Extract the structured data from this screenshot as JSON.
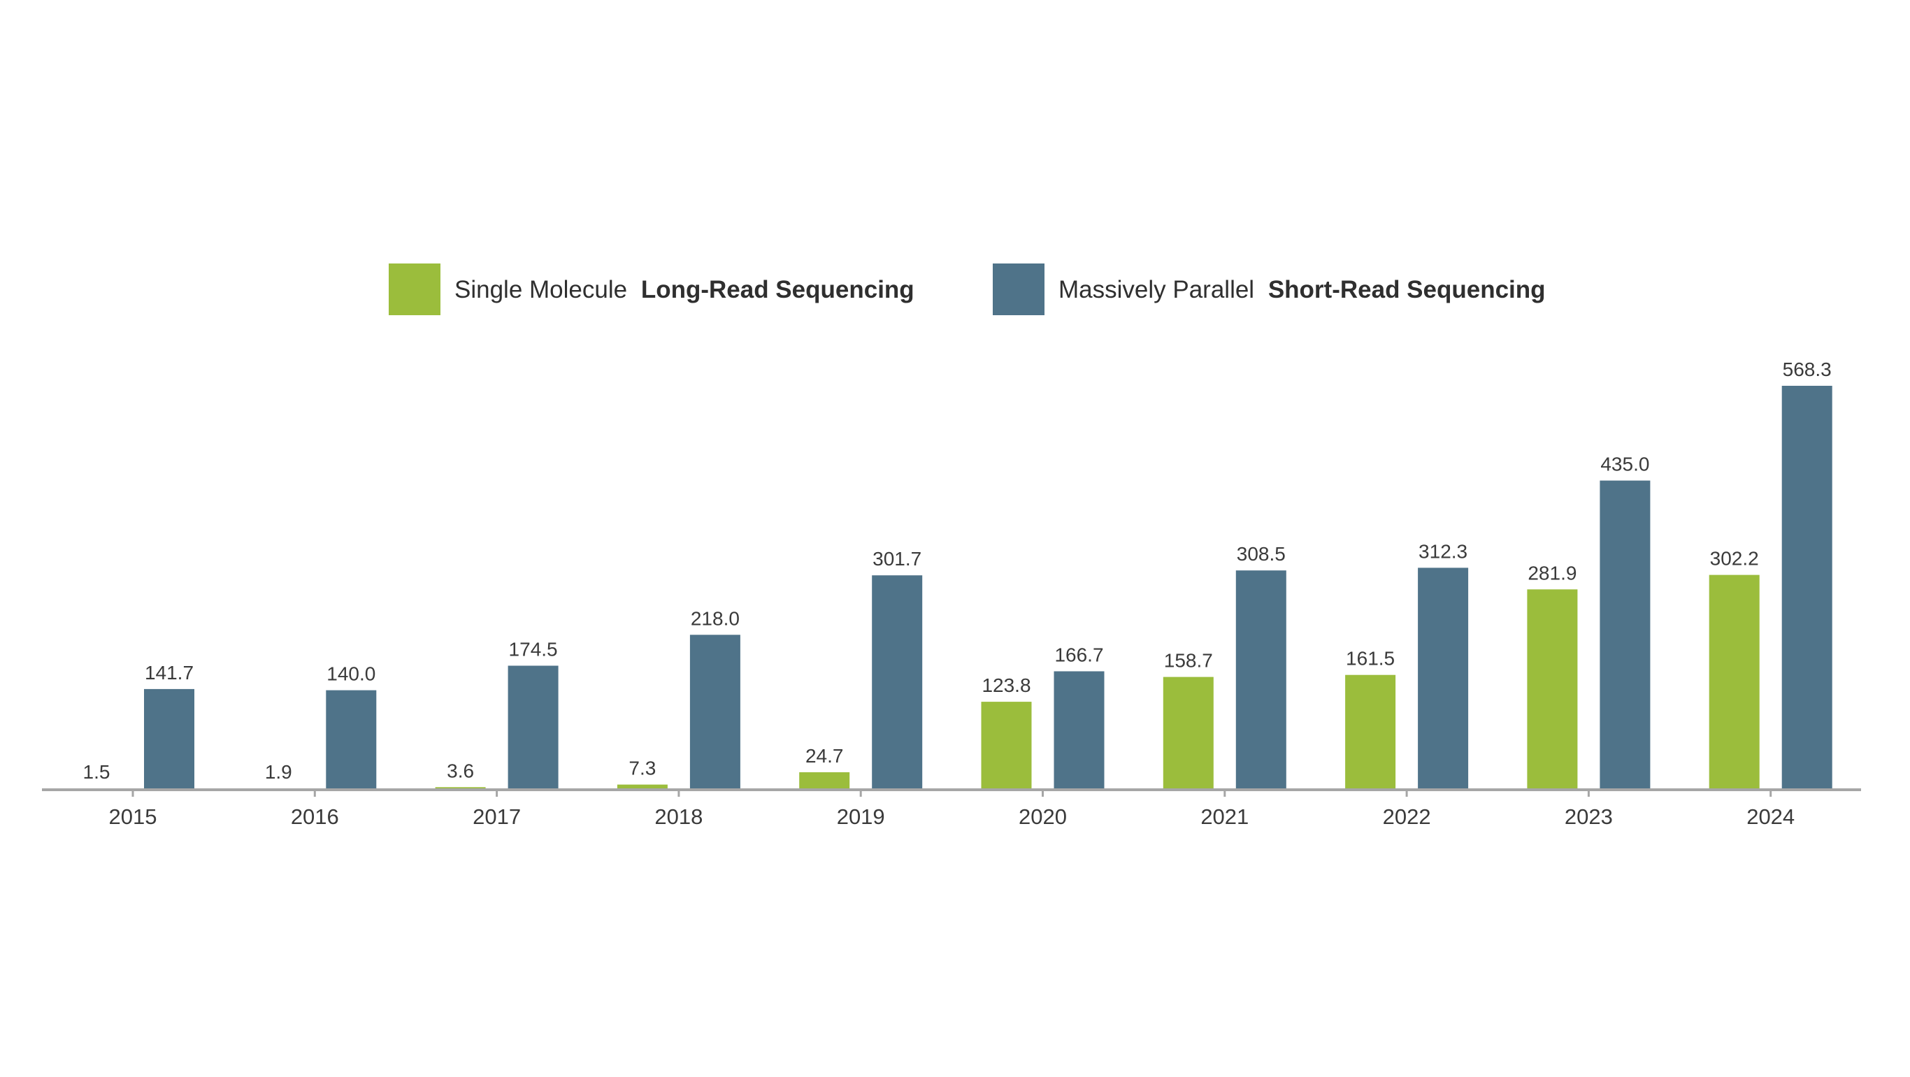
{
  "chart_data": {
    "type": "bar",
    "categories": [
      "2015",
      "2016",
      "2017",
      "2018",
      "2019",
      "2020",
      "2021",
      "2022",
      "2023",
      "2024"
    ],
    "series": [
      {
        "name": "Single Molecule Long-Read Sequencing",
        "legend_regular": "Single Molecule",
        "legend_bold": "Long-Read Sequencing",
        "color": "#9bbd3c",
        "values": [
          1.5,
          1.9,
          3.6,
          7.3,
          24.7,
          123.8,
          158.7,
          161.5,
          281.9,
          302.2
        ],
        "labels": [
          "1.5",
          "1.9",
          "3.6",
          "7.3",
          "24.7",
          "123.8",
          "158.7",
          "161.5",
          "281.9",
          "302.2"
        ]
      },
      {
        "name": "Massively Parallel Short-Read Sequencing",
        "legend_regular": "Massively Parallel",
        "legend_bold": "Short-Read Sequencing",
        "color": "#4f7389",
        "values": [
          141.7,
          140.0,
          174.5,
          218.0,
          301.7,
          166.7,
          308.5,
          312.3,
          435.0,
          568.3
        ],
        "labels": [
          "141.7",
          "140.0",
          "174.5",
          "218.0",
          "301.7",
          "166.7",
          "308.5",
          "312.3",
          "435.0",
          "568.3"
        ]
      }
    ],
    "title": "",
    "xlabel": "",
    "ylabel": "",
    "ylim": [
      0,
      568.3
    ],
    "grid": false,
    "legend_position": "top-center",
    "axis_color": "#a6a6a6"
  }
}
